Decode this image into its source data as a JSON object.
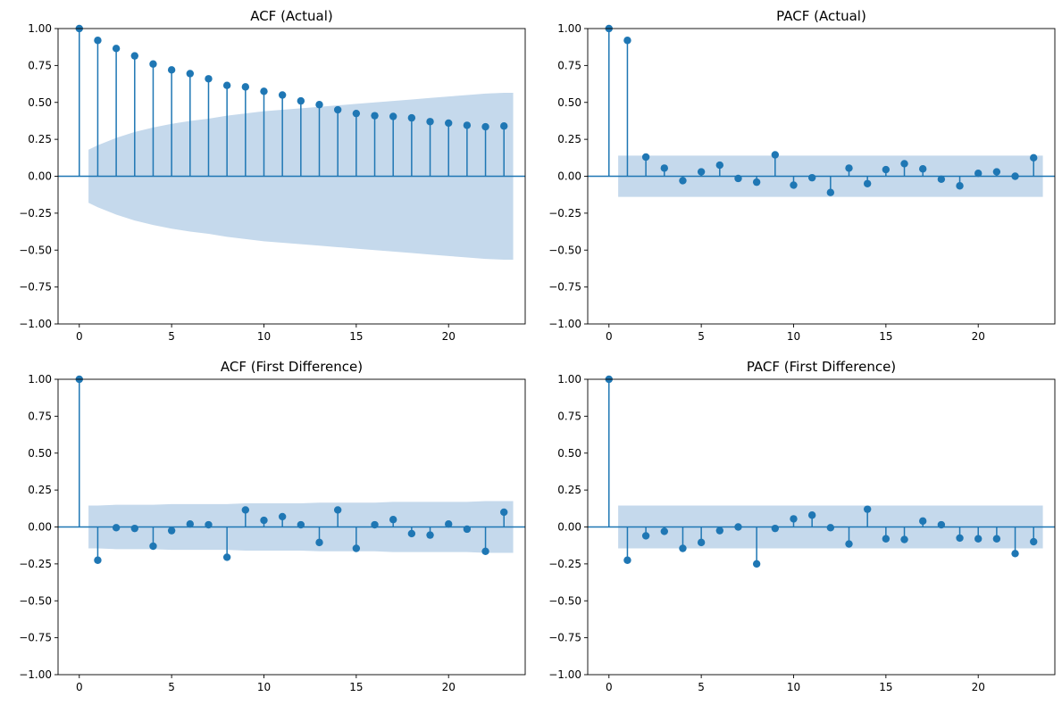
{
  "chart_data": [
    {
      "type": "stem",
      "title": "ACF (Actual)",
      "x": [
        0,
        1,
        2,
        3,
        4,
        5,
        6,
        7,
        8,
        9,
        10,
        11,
        12,
        13,
        14,
        15,
        16,
        17,
        18,
        19,
        20,
        21,
        22,
        23
      ],
      "values": [
        1.0,
        0.92,
        0.865,
        0.815,
        0.76,
        0.72,
        0.695,
        0.66,
        0.615,
        0.605,
        0.575,
        0.55,
        0.51,
        0.485,
        0.45,
        0.425,
        0.41,
        0.405,
        0.395,
        0.37,
        0.36,
        0.345,
        0.335,
        0.34
      ],
      "band": [
        0.15,
        0.21,
        0.26,
        0.3,
        0.33,
        0.355,
        0.375,
        0.39,
        0.41,
        0.425,
        0.44,
        0.45,
        0.46,
        0.47,
        0.48,
        0.49,
        0.5,
        0.51,
        0.52,
        0.53,
        0.54,
        0.55,
        0.56,
        0.565
      ],
      "band_start": 0.5,
      "band_end": 23.5,
      "xlim": [
        -1.15,
        24.15
      ],
      "ylim": [
        -1.0,
        1.0
      ],
      "xticks": [
        0,
        5,
        10,
        15,
        20
      ],
      "yticks": [
        -1.0,
        -0.75,
        -0.5,
        -0.25,
        0.0,
        0.25,
        0.5,
        0.75,
        1.0
      ],
      "xtick_labels": [
        "0",
        "5",
        "10",
        "15",
        "20"
      ],
      "ytick_labels": [
        "−1.00",
        "−0.75",
        "−0.50",
        "−0.25",
        "0.00",
        "0.25",
        "0.50",
        "0.75",
        "1.00"
      ],
      "color": "#1f77b4",
      "band_color": "#c5d9ec"
    },
    {
      "type": "stem",
      "title": "PACF (Actual)",
      "x": [
        0,
        1,
        2,
        3,
        4,
        5,
        6,
        7,
        8,
        9,
        10,
        11,
        12,
        13,
        14,
        15,
        16,
        17,
        18,
        19,
        20,
        21,
        22,
        23
      ],
      "values": [
        1.0,
        0.92,
        0.13,
        0.055,
        -0.03,
        0.03,
        0.075,
        -0.015,
        -0.04,
        0.145,
        -0.06,
        -0.01,
        -0.11,
        0.055,
        -0.05,
        0.045,
        0.085,
        0.05,
        -0.02,
        -0.065,
        0.02,
        0.03,
        0.0,
        0.125
      ],
      "band": [
        0.14,
        0.14,
        0.14,
        0.14,
        0.14,
        0.14,
        0.14,
        0.14,
        0.14,
        0.14,
        0.14,
        0.14,
        0.14,
        0.14,
        0.14,
        0.14,
        0.14,
        0.14,
        0.14,
        0.14,
        0.14,
        0.14,
        0.14,
        0.14
      ],
      "band_start": 0.5,
      "band_end": 23.5,
      "xlim": [
        -1.15,
        24.15
      ],
      "ylim": [
        -1.0,
        1.0
      ],
      "xticks": [
        0,
        5,
        10,
        15,
        20
      ],
      "yticks": [
        -1.0,
        -0.75,
        -0.5,
        -0.25,
        0.0,
        0.25,
        0.5,
        0.75,
        1.0
      ],
      "xtick_labels": [
        "0",
        "5",
        "10",
        "15",
        "20"
      ],
      "ytick_labels": [
        "−1.00",
        "−0.75",
        "−0.50",
        "−0.25",
        "0.00",
        "0.25",
        "0.50",
        "0.75",
        "1.00"
      ],
      "color": "#1f77b4",
      "band_color": "#c5d9ec"
    },
    {
      "type": "stem",
      "title": "ACF (First Difference)",
      "x": [
        0,
        1,
        2,
        3,
        4,
        5,
        6,
        7,
        8,
        9,
        10,
        11,
        12,
        13,
        14,
        15,
        16,
        17,
        18,
        19,
        20,
        21,
        22,
        23
      ],
      "values": [
        1.0,
        -0.225,
        -0.005,
        -0.01,
        -0.13,
        -0.025,
        0.02,
        0.015,
        -0.205,
        0.115,
        0.045,
        0.07,
        0.015,
        -0.105,
        0.115,
        -0.145,
        0.015,
        0.05,
        -0.045,
        -0.055,
        0.02,
        -0.015,
        -0.165,
        0.1
      ],
      "band": [
        0.145,
        0.145,
        0.15,
        0.15,
        0.15,
        0.155,
        0.155,
        0.155,
        0.155,
        0.16,
        0.16,
        0.16,
        0.16,
        0.165,
        0.165,
        0.165,
        0.165,
        0.17,
        0.17,
        0.17,
        0.17,
        0.17,
        0.175,
        0.175
      ],
      "band_start": 0.5,
      "band_end": 23.5,
      "xlim": [
        -1.15,
        24.15
      ],
      "ylim": [
        -1.0,
        1.0
      ],
      "xticks": [
        0,
        5,
        10,
        15,
        20
      ],
      "yticks": [
        -1.0,
        -0.75,
        -0.5,
        -0.25,
        0.0,
        0.25,
        0.5,
        0.75,
        1.0
      ],
      "xtick_labels": [
        "0",
        "5",
        "10",
        "15",
        "20"
      ],
      "ytick_labels": [
        "−1.00",
        "−0.75",
        "−0.50",
        "−0.25",
        "0.00",
        "0.25",
        "0.50",
        "0.75",
        "1.00"
      ],
      "color": "#1f77b4",
      "band_color": "#c5d9ec"
    },
    {
      "type": "stem",
      "title": "PACF (First Difference)",
      "x": [
        0,
        1,
        2,
        3,
        4,
        5,
        6,
        7,
        8,
        9,
        10,
        11,
        12,
        13,
        14,
        15,
        16,
        17,
        18,
        19,
        20,
        21,
        22,
        23
      ],
      "values": [
        1.0,
        -0.225,
        -0.06,
        -0.03,
        -0.145,
        -0.105,
        -0.025,
        0.0,
        -0.25,
        -0.01,
        0.055,
        0.08,
        -0.005,
        -0.115,
        0.12,
        -0.08,
        -0.085,
        0.04,
        0.015,
        -0.075,
        -0.08,
        -0.08,
        -0.18,
        -0.1
      ],
      "band": [
        0.145,
        0.145,
        0.145,
        0.145,
        0.145,
        0.145,
        0.145,
        0.145,
        0.145,
        0.145,
        0.145,
        0.145,
        0.145,
        0.145,
        0.145,
        0.145,
        0.145,
        0.145,
        0.145,
        0.145,
        0.145,
        0.145,
        0.145,
        0.145
      ],
      "band_start": 0.5,
      "band_end": 23.5,
      "xlim": [
        -1.15,
        24.15
      ],
      "ylim": [
        -1.0,
        1.0
      ],
      "xticks": [
        0,
        5,
        10,
        15,
        20
      ],
      "yticks": [
        -1.0,
        -0.75,
        -0.5,
        -0.25,
        0.0,
        0.25,
        0.5,
        0.75,
        1.0
      ],
      "xtick_labels": [
        "0",
        "5",
        "10",
        "15",
        "20"
      ],
      "ytick_labels": [
        "−1.00",
        "−0.75",
        "−0.50",
        "−0.25",
        "0.00",
        "0.25",
        "0.50",
        "0.75",
        "1.00"
      ],
      "color": "#1f77b4",
      "band_color": "#c5d9ec"
    }
  ]
}
